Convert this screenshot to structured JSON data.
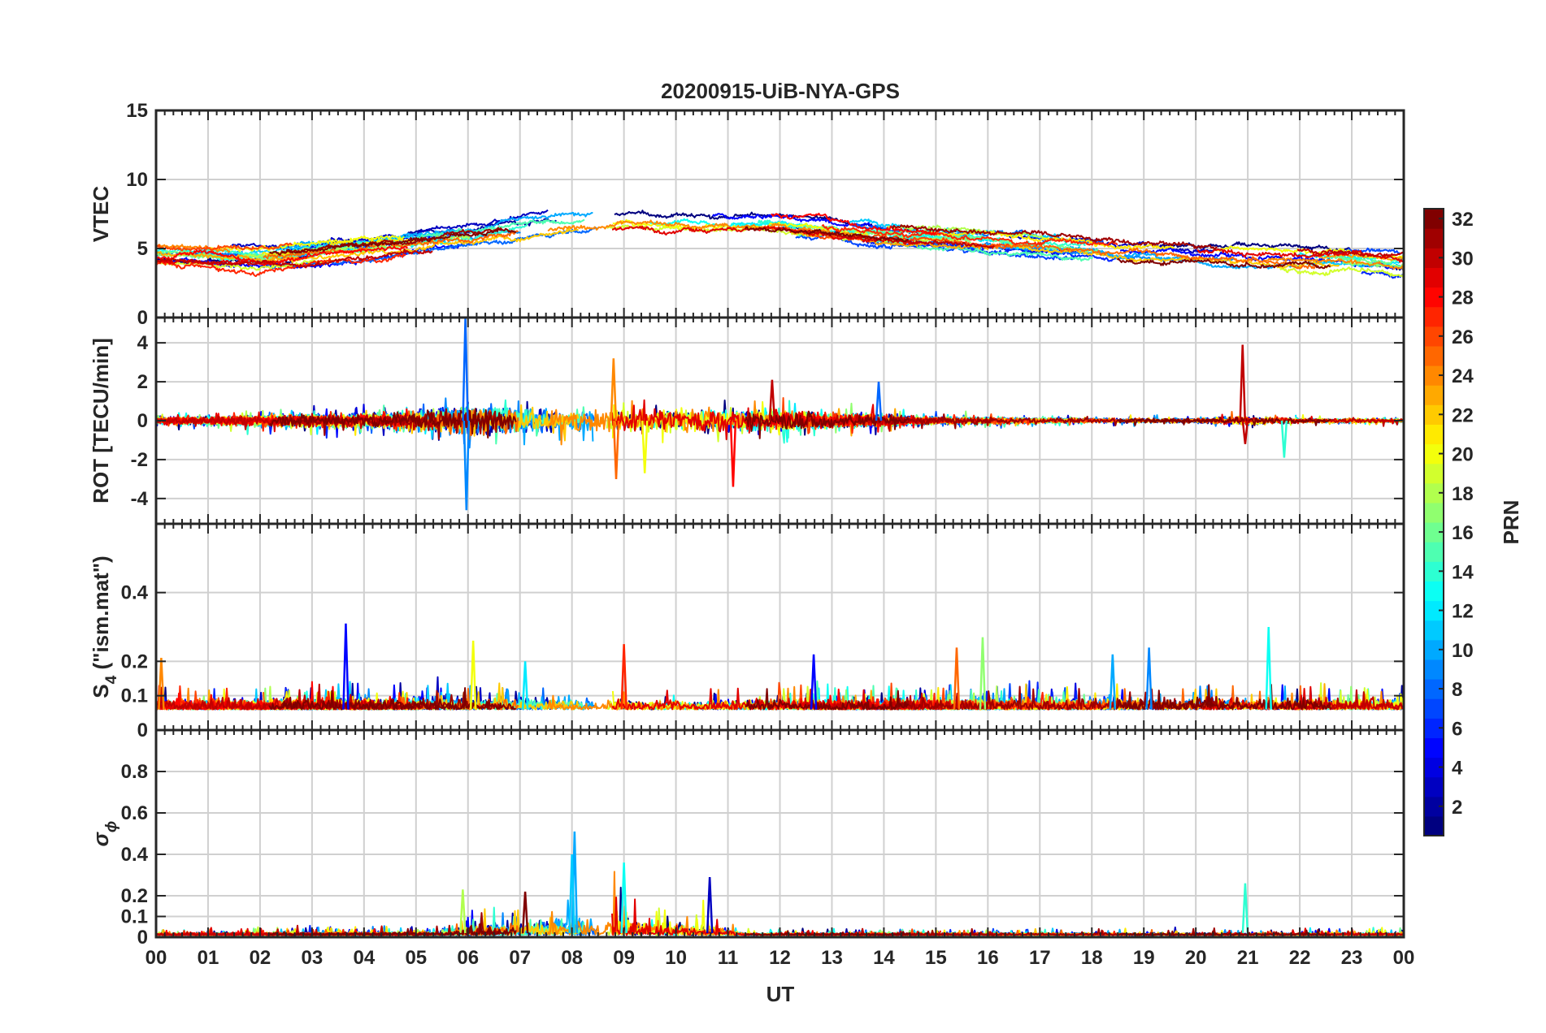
{
  "chart_data": {
    "type": "line",
    "title": "20200915-UiB-NYA-GPS",
    "xlabel": "UT",
    "x_ticks": [
      "00",
      "01",
      "02",
      "03",
      "04",
      "05",
      "06",
      "07",
      "08",
      "09",
      "10",
      "11",
      "12",
      "13",
      "14",
      "15",
      "16",
      "17",
      "18",
      "19",
      "20",
      "21",
      "22",
      "23",
      "00"
    ],
    "xlim_hours": [
      0,
      24
    ],
    "grid": true,
    "colorbar": {
      "label": "PRN",
      "range": [
        1,
        32
      ],
      "ticks": [
        "2",
        "4",
        "6",
        "8",
        "10",
        "12",
        "14",
        "16",
        "18",
        "20",
        "22",
        "24",
        "26",
        "28",
        "30",
        "32"
      ],
      "colormap": "jet"
    },
    "panels": [
      {
        "id": "vtec",
        "ylabel": "VTEC",
        "ylim": [
          0,
          15
        ],
        "y_ticks": [
          {
            "v": 0,
            "t": "0"
          },
          {
            "v": 5,
            "t": "5"
          },
          {
            "v": 10,
            "t": "10"
          },
          {
            "v": 15,
            "t": "15"
          }
        ],
        "profile": {
          "type": "vtec",
          "baseline": [
            [
              0,
              4.5
            ],
            [
              2,
              4.2
            ],
            [
              4,
              4.8
            ],
            [
              6,
              5.6
            ],
            [
              8,
              6.6
            ],
            [
              9,
              7.0
            ],
            [
              11,
              6.8
            ],
            [
              12,
              6.8
            ],
            [
              14,
              6.0
            ],
            [
              16,
              5.6
            ],
            [
              18,
              5.0
            ],
            [
              20,
              4.6
            ],
            [
              22,
              4.3
            ],
            [
              24,
              4.0
            ]
          ],
          "spread": 1.2
        }
      },
      {
        "id": "rot",
        "ylabel": "ROT [TECU/min]",
        "ylim": [
          -5.3,
          5.3
        ],
        "y_ticks": [
          {
            "v": -4,
            "t": "-4"
          },
          {
            "v": -2,
            "t": "-2"
          },
          {
            "v": 0,
            "t": "0"
          },
          {
            "v": 2,
            "t": "2"
          },
          {
            "v": 4,
            "t": "4"
          }
        ],
        "profile": {
          "type": "rot",
          "amplitude": [
            [
              0,
              0.25
            ],
            [
              3,
              0.4
            ],
            [
              4.5,
              0.5
            ],
            [
              6,
              0.9
            ],
            [
              9,
              0.7
            ],
            [
              11.5,
              0.8
            ],
            [
              13,
              0.5
            ],
            [
              15,
              0.25
            ],
            [
              18,
              0.15
            ],
            [
              20,
              0.15
            ],
            [
              21,
              0.3
            ],
            [
              22,
              0.15
            ],
            [
              24,
              0.12
            ]
          ],
          "spikes": [
            {
              "h": 5.95,
              "v": 5.3,
              "prn": 8
            },
            {
              "h": 5.97,
              "v": -4.6,
              "prn": 9
            },
            {
              "h": 8.8,
              "v": 3.2,
              "prn": 24
            },
            {
              "h": 8.85,
              "v": -3.0,
              "prn": 25
            },
            {
              "h": 9.4,
              "v": -2.7,
              "prn": 20
            },
            {
              "h": 11.1,
              "v": -3.4,
              "prn": 28
            },
            {
              "h": 11.85,
              "v": 2.1,
              "prn": 30
            },
            {
              "h": 20.9,
              "v": 3.9,
              "prn": 30
            },
            {
              "h": 20.95,
              "v": -1.2,
              "prn": 30
            },
            {
              "h": 21.7,
              "v": -1.9,
              "prn": 14
            },
            {
              "h": 13.9,
              "v": 2.0,
              "prn": 8
            }
          ]
        }
      },
      {
        "id": "s4",
        "ylabel": "S",
        "ylabel_sub": "4",
        "ylabel_suffix": " (\"ism.mat\")",
        "ylim": [
          0,
          0.6
        ],
        "y_ticks": [
          {
            "v": 0,
            "t": "0"
          },
          {
            "v": 0.1,
            "t": "0.1"
          },
          {
            "v": 0.2,
            "t": "0.2"
          },
          {
            "v": 0.4,
            "t": "0.4"
          }
        ],
        "profile": {
          "type": "s4",
          "base": 0.06,
          "spread": 0.05,
          "spikes": [
            {
              "h": 3.65,
              "v": 0.31,
              "prn": 5
            },
            {
              "h": 9.0,
              "v": 0.25,
              "prn": 27
            },
            {
              "h": 12.65,
              "v": 0.22,
              "prn": 5
            },
            {
              "h": 15.4,
              "v": 0.24,
              "prn": 25
            },
            {
              "h": 15.9,
              "v": 0.27,
              "prn": 17
            },
            {
              "h": 19.1,
              "v": 0.24,
              "prn": 9
            },
            {
              "h": 21.4,
              "v": 0.3,
              "prn": 13
            },
            {
              "h": 6.1,
              "v": 0.26,
              "prn": 20
            },
            {
              "h": 0.1,
              "v": 0.21,
              "prn": 24
            },
            {
              "h": 7.1,
              "v": 0.2,
              "prn": 12
            },
            {
              "h": 18.4,
              "v": 0.22,
              "prn": 10
            }
          ]
        }
      },
      {
        "id": "sigphi",
        "ylabel": "σ",
        "ylabel_sub": "ϕ",
        "ylim": [
          0,
          1.0
        ],
        "y_ticks": [
          {
            "v": 0,
            "t": "0"
          },
          {
            "v": 0.1,
            "t": "0.1"
          },
          {
            "v": 0.2,
            "t": "0.2"
          },
          {
            "v": 0.4,
            "t": "0.4"
          },
          {
            "v": 0.6,
            "t": "0.6"
          },
          {
            "v": 0.8,
            "t": "0.8"
          }
        ],
        "profile": {
          "type": "sig",
          "amplitude": [
            [
              0,
              0.02
            ],
            [
              5.5,
              0.03
            ],
            [
              6,
              0.08
            ],
            [
              7,
              0.12
            ],
            [
              8,
              0.18
            ],
            [
              9,
              0.16
            ],
            [
              10,
              0.12
            ],
            [
              10.9,
              0.08
            ],
            [
              11.3,
              0.02
            ],
            [
              24,
              0.02
            ]
          ],
          "spikes": [
            {
              "h": 8.05,
              "v": 0.51,
              "prn": 10
            },
            {
              "h": 8.0,
              "v": 0.4,
              "prn": 11
            },
            {
              "h": 9.0,
              "v": 0.36,
              "prn": 13
            },
            {
              "h": 10.65,
              "v": 0.29,
              "prn": 3
            },
            {
              "h": 20.95,
              "v": 0.26,
              "prn": 14
            },
            {
              "h": 7.1,
              "v": 0.22,
              "prn": 32
            },
            {
              "h": 5.9,
              "v": 0.23,
              "prn": 18
            }
          ]
        }
      }
    ]
  }
}
